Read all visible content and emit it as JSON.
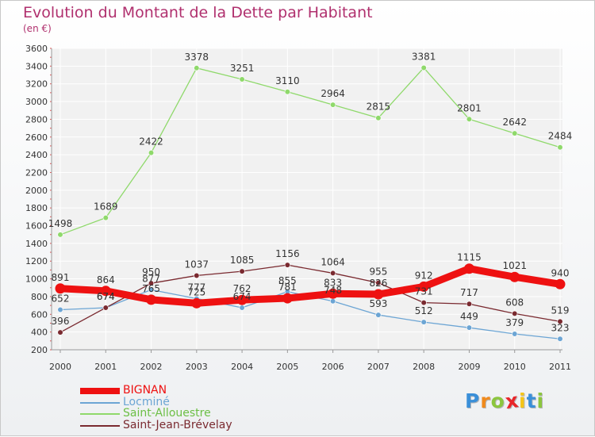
{
  "chart_data": {
    "type": "line",
    "title": "Evolution du Montant de la Dette par Habitant",
    "subtitle": "(en €)",
    "x": [
      "2000",
      "2001",
      "2002",
      "2003",
      "2004",
      "2005",
      "2006",
      "2007",
      "2008",
      "2009",
      "2010",
      "2011"
    ],
    "ylim": [
      200,
      3600
    ],
    "yticks": [
      "200",
      "400",
      "600",
      "800",
      "1000",
      "1200",
      "1400",
      "1600",
      "1800",
      "2000",
      "2200",
      "2400",
      "2600",
      "2800",
      "3000",
      "3200",
      "3400",
      "3600"
    ],
    "grid": true,
    "series": [
      {
        "name": "Saint-Allouestre",
        "color": "#8fd96b",
        "values": [
          1498,
          1689,
          2422,
          3378,
          3251,
          3110,
          2964,
          2815,
          3381,
          2801,
          2642,
          2484
        ]
      },
      {
        "name": "Locminé",
        "color": "#6ca5d4",
        "values": [
          652,
          674,
          877,
          777,
          674,
          855,
          748,
          593,
          512,
          449,
          379,
          323
        ]
      },
      {
        "name": "Saint-Jean-Brévelay",
        "color": "#7a2a30",
        "values": [
          396,
          674,
          950,
          1037,
          1085,
          1156,
          1064,
          955,
          731,
          717,
          608,
          519
        ]
      },
      {
        "name": "BIGNAN",
        "color": "#ee1111",
        "values": [
          891,
          864,
          765,
          725,
          762,
          781,
          833,
          826,
          912,
          1115,
          1021,
          940
        ]
      }
    ],
    "legend": [
      {
        "name": "BIGNAN",
        "color": "#ee1111"
      },
      {
        "name": "Locminé",
        "color": "#6ca5d4"
      },
      {
        "name": "Saint-Allouestre",
        "color": "#8fd96b"
      },
      {
        "name": "Saint-Jean-Brévelay",
        "color": "#7a2a30"
      }
    ]
  },
  "logo": {
    "letters": [
      "P",
      "r",
      "o",
      "x",
      "i",
      "t",
      "i"
    ],
    "colors": [
      "#3a8fd8",
      "#f08a1c",
      "#8cc63e",
      "#e8262a",
      "#f5c518",
      "#3a8fd8",
      "#8cc63e"
    ]
  }
}
